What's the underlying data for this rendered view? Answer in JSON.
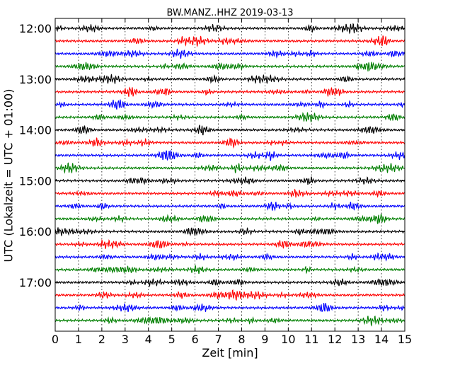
{
  "chart_data": {
    "type": "line",
    "title": "BW.MANZ..HHZ 2019-03-13",
    "xlabel": "Zeit  [min]",
    "ylabel": "UTC (Lokalzeit = UTC + 01:00)",
    "xlim": [
      0,
      15
    ],
    "x_ticks": [
      "0",
      "1",
      "2",
      "3",
      "4",
      "5",
      "6",
      "7",
      "8",
      "9",
      "10",
      "11",
      "12",
      "13",
      "14",
      "15"
    ],
    "y_ticks": [
      "12:00",
      "13:00",
      "14:00",
      "15:00",
      "16:00",
      "17:00"
    ],
    "grid": "vertical dotted lines at each minute",
    "trace_colors": [
      "#000000",
      "#ff0000",
      "#0000ff",
      "#007f00"
    ],
    "series": [
      {
        "start": "12:00"
      },
      {
        "start": "12:15"
      },
      {
        "start": "12:30"
      },
      {
        "start": "12:45"
      },
      {
        "start": "13:00"
      },
      {
        "start": "13:15"
      },
      {
        "start": "13:30"
      },
      {
        "start": "13:45"
      },
      {
        "start": "14:00"
      },
      {
        "start": "14:15"
      },
      {
        "start": "14:30"
      },
      {
        "start": "14:45"
      },
      {
        "start": "15:00"
      },
      {
        "start": "15:15"
      },
      {
        "start": "15:30"
      },
      {
        "start": "15:45"
      },
      {
        "start": "16:00"
      },
      {
        "start": "16:15"
      },
      {
        "start": "16:30"
      },
      {
        "start": "16:45"
      },
      {
        "start": "17:00"
      },
      {
        "start": "17:15"
      },
      {
        "start": "17:30"
      },
      {
        "start": "17:45"
      }
    ]
  }
}
